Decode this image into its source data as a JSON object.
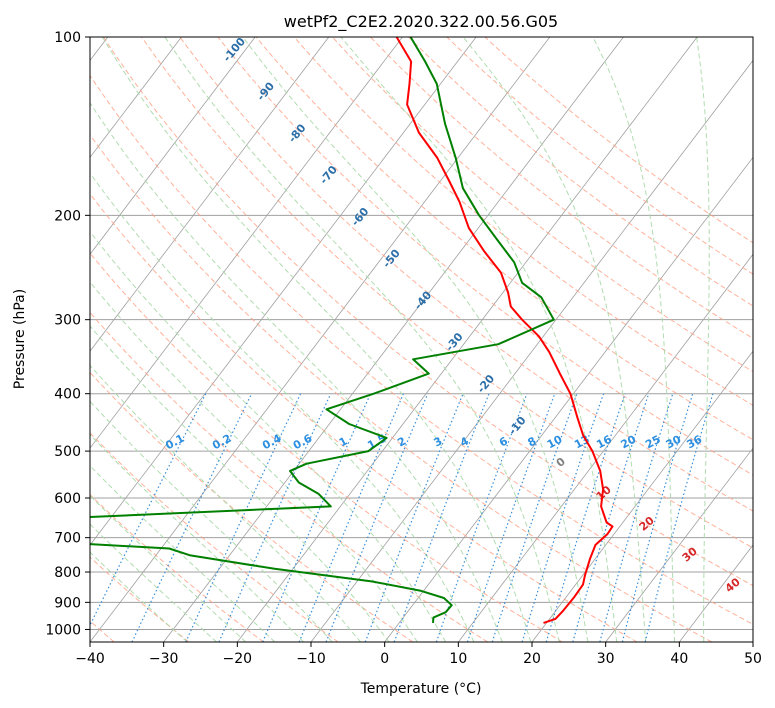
{
  "chart_data": {
    "type": "line",
    "title": "wetPf2_C2E2.2020.322.00.56.G05",
    "xlabel": "Temperature (°C)",
    "ylabel": "Pressure (hPa)",
    "xlim": [
      -40,
      50
    ],
    "ylim": [
      1050,
      100
    ],
    "y_scale": "log",
    "x_ticks": [
      "−40",
      "−30",
      "−20",
      "−10",
      "0",
      "10",
      "20",
      "30",
      "40",
      "50"
    ],
    "y_ticks": [
      "100",
      "200",
      "300",
      "400",
      "500",
      "600",
      "700",
      "800",
      "900",
      "1000"
    ],
    "grid": true,
    "series": [
      {
        "role": "temperature",
        "color": "#ff0000",
        "points": [
          {
            "p": 975,
            "t": 19.6
          },
          {
            "p": 960,
            "t": 20.8
          },
          {
            "p": 930,
            "t": 21.0
          },
          {
            "p": 880,
            "t": 21.1
          },
          {
            "p": 840,
            "t": 21.0
          },
          {
            "p": 810,
            "t": 20.3
          },
          {
            "p": 760,
            "t": 19.3
          },
          {
            "p": 720,
            "t": 18.6
          },
          {
            "p": 690,
            "t": 19.1
          },
          {
            "p": 670,
            "t": 19.0
          },
          {
            "p": 660,
            "t": 17.8
          },
          {
            "p": 620,
            "t": 15.4
          },
          {
            "p": 580,
            "t": 13.9
          },
          {
            "p": 540,
            "t": 11.6
          },
          {
            "p": 500,
            "t": 8.5
          },
          {
            "p": 470,
            "t": 5.6
          },
          {
            "p": 440,
            "t": 3.1
          },
          {
            "p": 400,
            "t": -0.4
          },
          {
            "p": 370,
            "t": -3.9
          },
          {
            "p": 340,
            "t": -7.6
          },
          {
            "p": 320,
            "t": -10.6
          },
          {
            "p": 300,
            "t": -14.6
          },
          {
            "p": 285,
            "t": -17.5
          },
          {
            "p": 270,
            "t": -19.3
          },
          {
            "p": 250,
            "t": -22.3
          },
          {
            "p": 230,
            "t": -26.8
          },
          {
            "p": 210,
            "t": -31.3
          },
          {
            "p": 190,
            "t": -35.2
          },
          {
            "p": 175,
            "t": -38.8
          },
          {
            "p": 160,
            "t": -42.8
          },
          {
            "p": 145,
            "t": -47.9
          },
          {
            "p": 130,
            "t": -52.4
          },
          {
            "p": 120,
            "t": -54.2
          },
          {
            "p": 110,
            "t": -56.3
          },
          {
            "p": 100,
            "t": -60.8
          }
        ]
      },
      {
        "role": "dewpoint",
        "color": "#008000",
        "points": [
          {
            "p": 975,
            "t": 4.6
          },
          {
            "p": 955,
            "t": 4.1
          },
          {
            "p": 935,
            "t": 5.2
          },
          {
            "p": 910,
            "t": 5.3
          },
          {
            "p": 885,
            "t": 3.5
          },
          {
            "p": 860,
            "t": -0.5
          },
          {
            "p": 830,
            "t": -7.9
          },
          {
            "p": 790,
            "t": -22.5
          },
          {
            "p": 750,
            "t": -35.3
          },
          {
            "p": 730,
            "t": -38.9
          },
          {
            "p": 710,
            "t": -57.1
          },
          {
            "p": 650,
            "t": -57.6
          },
          {
            "p": 620,
            "t": -21.3
          },
          {
            "p": 590,
            "t": -24.3
          },
          {
            "p": 565,
            "t": -28.1
          },
          {
            "p": 540,
            "t": -30.5
          },
          {
            "p": 525,
            "t": -29.0
          },
          {
            "p": 500,
            "t": -21.9
          },
          {
            "p": 475,
            "t": -20.8
          },
          {
            "p": 450,
            "t": -27.3
          },
          {
            "p": 425,
            "t": -31.9
          },
          {
            "p": 400,
            "t": -27.1
          },
          {
            "p": 370,
            "t": -21.7
          },
          {
            "p": 350,
            "t": -25.3
          },
          {
            "p": 330,
            "t": -15.3
          },
          {
            "p": 300,
            "t": -10.3
          },
          {
            "p": 275,
            "t": -14.3
          },
          {
            "p": 260,
            "t": -18.4
          },
          {
            "p": 240,
            "t": -21.6
          },
          {
            "p": 220,
            "t": -26.2
          },
          {
            "p": 200,
            "t": -31.2
          },
          {
            "p": 180,
            "t": -36.2
          },
          {
            "p": 160,
            "t": -40.3
          },
          {
            "p": 140,
            "t": -45.3
          },
          {
            "p": 120,
            "t": -50.5
          },
          {
            "p": 110,
            "t": -54.4
          },
          {
            "p": 100,
            "t": -58.9
          }
        ]
      }
    ],
    "annotations": {
      "dry_adiabat_labels": [
        "-100",
        "-90",
        "-80",
        "-70",
        "-60",
        "-50",
        "-40",
        "-30",
        "-20",
        "-10"
      ],
      "mixing_ratio_labels": [
        "0.1",
        "0.2",
        "0.4",
        "0.6",
        "1",
        "1.5",
        "2",
        "3",
        "4",
        "6",
        "8",
        "10",
        "13",
        "16",
        "20",
        "25",
        "30",
        "36"
      ],
      "moist_adiabat_labels": [
        "0",
        "10",
        "20",
        "30",
        "40"
      ]
    },
    "colors": {
      "temperature": "#ff0000",
      "dewpoint": "#008000",
      "dry_adiabat": "#ff9e80",
      "moist_adiabat": "#a8d8a8",
      "mixing_ratio": "#3a8fd8",
      "isotherm": "#a0a0a0",
      "dry_adiabat_label": "#2c6fa8",
      "mixing_ratio_label": "#2c8fe0",
      "moist_adiabat_label": "#d62728",
      "moist_adiabat_zero_label": "#808080"
    }
  }
}
